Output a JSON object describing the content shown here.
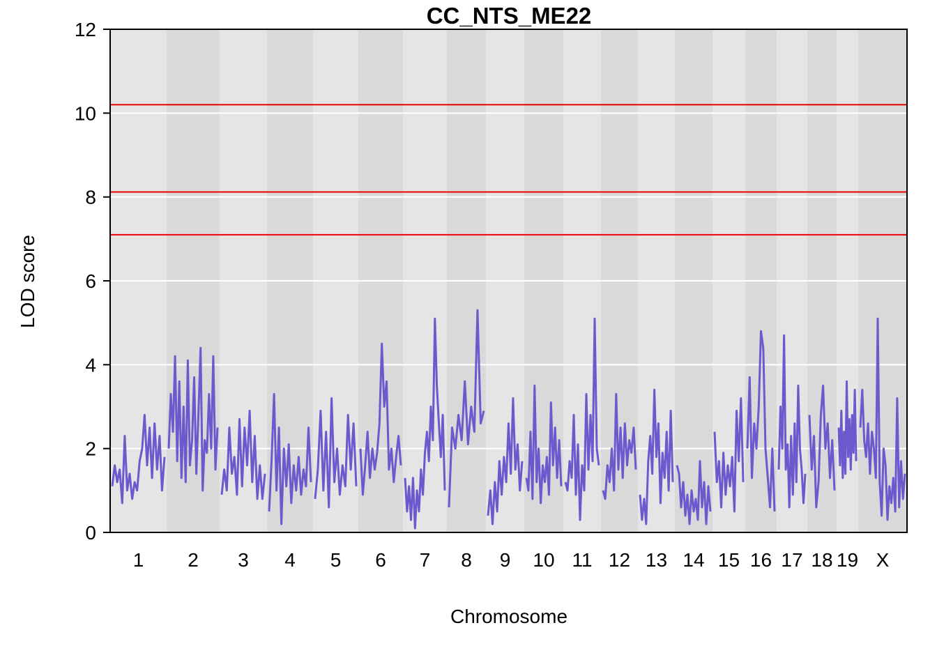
{
  "chart_data": {
    "type": "line",
    "title": "CC_NTS_ME22",
    "xlabel": "Chromosome",
    "ylabel": "LOD score",
    "ylim": [
      0,
      12
    ],
    "y_ticks": [
      0,
      2,
      4,
      6,
      8,
      10,
      12
    ],
    "grid": true,
    "colors": {
      "line": "#6a5acd",
      "threshold": "#ee0000",
      "band_light": "#e5e5e5",
      "band_dark": "#d9d9d9",
      "grid": "#ffffff"
    },
    "thresholds": [
      10.2,
      8.12,
      7.1
    ],
    "chromosomes": [
      {
        "label": "1",
        "profile": [
          1.1,
          1.6,
          1.2,
          1.5,
          0.7,
          2.3,
          1.0,
          1.4,
          0.8,
          1.2,
          1.0,
          1.7,
          2.0,
          2.8,
          1.6,
          2.5,
          1.3,
          2.6,
          1.5,
          2.3,
          1.0,
          1.8
        ]
      },
      {
        "label": "2",
        "profile": [
          2.0,
          3.3,
          2.4,
          4.2,
          1.7,
          3.6,
          1.3,
          3.0,
          1.2,
          4.1,
          1.6,
          2.2,
          3.7,
          1.4,
          2.8,
          4.4,
          1.0,
          2.2,
          1.9,
          3.3,
          2.0,
          4.2,
          1.5,
          2.5
        ]
      },
      {
        "label": "3",
        "profile": [
          0.9,
          1.5,
          1.0,
          2.5,
          1.4,
          1.8,
          0.9,
          2.7,
          1.1,
          2.5,
          1.6,
          2.9,
          1.2,
          2.3,
          0.8,
          1.6,
          0.8,
          1.4
        ]
      },
      {
        "label": "4",
        "profile": [
          0.5,
          1.7,
          3.3,
          1.0,
          2.5,
          0.2,
          2.0,
          1.1,
          2.1,
          0.7,
          1.6,
          1.0,
          1.8,
          0.9,
          1.5,
          1.1,
          2.5,
          1.2
        ]
      },
      {
        "label": "5",
        "profile": [
          0.8,
          1.5,
          2.9,
          1.0,
          2.4,
          0.6,
          3.2,
          1.2,
          2.0,
          0.9,
          1.6,
          1.1,
          2.8,
          1.5,
          2.6,
          1.1
        ]
      },
      {
        "label": "6",
        "profile": [
          2.0,
          0.9,
          1.6,
          2.4,
          1.3,
          2.0,
          1.5,
          1.9,
          2.6,
          4.5,
          3.0,
          3.6,
          1.5,
          2.0,
          1.2,
          1.8,
          2.3,
          1.6
        ]
      },
      {
        "label": "7",
        "profile": [
          1.3,
          0.5,
          1.1,
          0.3,
          1.3,
          0.1,
          1.0,
          0.5,
          1.5,
          0.9,
          1.9,
          2.4,
          1.7,
          3.0,
          2.2,
          5.1,
          3.5,
          2.6,
          1.8,
          2.8,
          1.0
        ]
      },
      {
        "label": "8",
        "profile": [
          0.6,
          2.5,
          2.0,
          2.8,
          2.2,
          3.6,
          2.1,
          3.0,
          2.4,
          5.3,
          2.6,
          2.9
        ]
      },
      {
        "label": "9",
        "profile": [
          0.4,
          1.0,
          0.2,
          1.2,
          0.5,
          1.7,
          0.9,
          1.8,
          1.2,
          2.6,
          1.4,
          3.2,
          1.5,
          2.1,
          1.0,
          1.7
        ]
      },
      {
        "label": "10",
        "profile": [
          1.3,
          1.0,
          2.4,
          0.8,
          3.5,
          1.2,
          2.0,
          0.7,
          1.6,
          1.2,
          1.8,
          0.9,
          3.1,
          1.6,
          2.5,
          1.3,
          2.2,
          1.1
        ]
      },
      {
        "label": "11",
        "profile": [
          1.2,
          1.0,
          1.7,
          1.3,
          2.8,
          0.9,
          2.1,
          0.3,
          1.6,
          1.0,
          3.3,
          1.5,
          2.8,
          1.7,
          5.1,
          2.0,
          1.6
        ]
      },
      {
        "label": "12",
        "profile": [
          1.0,
          0.8,
          1.6,
          1.2,
          2.0,
          1.0,
          3.3,
          1.5,
          2.5,
          1.3,
          2.6,
          1.6,
          2.2,
          1.9,
          2.5,
          1.5
        ]
      },
      {
        "label": "13",
        "profile": [
          0.9,
          0.3,
          0.8,
          0.2,
          1.7,
          2.3,
          1.4,
          3.4,
          1.8,
          2.6,
          0.7,
          1.9,
          1.3,
          2.4,
          1.0,
          2.9,
          1.2
        ]
      },
      {
        "label": "14",
        "profile": [
          1.6,
          1.4,
          0.6,
          1.2,
          0.4,
          0.9,
          0.2,
          1.0,
          0.5,
          0.8,
          0.3,
          1.7,
          0.6,
          1.2,
          0.2,
          1.1,
          0.5
        ]
      },
      {
        "label": "15",
        "profile": [
          2.4,
          1.2,
          1.7,
          0.6,
          1.9,
          0.9,
          1.6,
          1.1,
          1.8,
          0.5,
          2.9,
          1.7,
          3.2,
          1.2
        ]
      },
      {
        "label": "16",
        "profile": [
          2.0,
          3.7,
          1.3,
          2.6,
          2.0,
          3.0,
          4.8,
          4.4,
          2.0,
          1.3,
          0.6,
          2.0,
          0.5
        ]
      },
      {
        "label": "17",
        "profile": [
          1.5,
          3.0,
          2.0,
          4.7,
          1.5,
          2.1,
          0.6,
          2.3,
          0.9,
          2.6,
          1.2,
          3.5,
          2.0,
          1.5,
          0.7,
          1.4
        ]
      },
      {
        "label": "18",
        "profile": [
          2.8,
          1.5,
          2.3,
          0.6,
          1.2,
          2.8,
          3.5,
          2.0,
          2.6,
          1.3,
          2.2,
          1.0
        ]
      },
      {
        "label": "19",
        "profile": [
          2.5,
          1.6,
          2.9,
          1.3,
          2.4,
          1.4,
          3.6,
          1.8,
          2.7,
          1.5,
          2.8,
          1.9,
          3.4,
          1.7
        ]
      },
      {
        "label": "X",
        "profile": [
          2.5,
          3.4,
          2.2,
          1.8,
          2.6,
          1.4,
          2.4,
          2.0,
          1.3,
          5.1,
          1.2,
          0.4,
          2.0,
          1.6,
          0.3,
          1.1,
          0.7,
          1.3,
          0.5,
          3.2,
          0.6,
          1.7,
          0.8,
          1.4
        ]
      }
    ]
  }
}
